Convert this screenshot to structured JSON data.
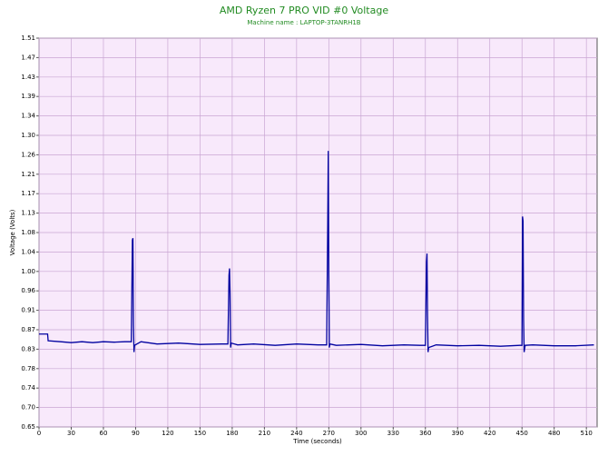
{
  "chart_data": {
    "type": "line",
    "title": "AMD Ryzen 7 PRO VID #0 Voltage",
    "subtitle": "Machine name : LAPTOP-3TANRH1B",
    "xlabel": "Time (seconds)",
    "ylabel": "Voltage (Volts)",
    "x": [
      0,
      8,
      8.5,
      20,
      30,
      40,
      50,
      60,
      70,
      80,
      86,
      87,
      87.5,
      88,
      88.5,
      89,
      95,
      110,
      130,
      150,
      170,
      176,
      177,
      177.5,
      178,
      178.5,
      179,
      185,
      200,
      220,
      240,
      260,
      268,
      269,
      269.5,
      270,
      270.5,
      271,
      277,
      300,
      320,
      340,
      355,
      360,
      361,
      361.5,
      362,
      362.5,
      363,
      370,
      390,
      410,
      430,
      448,
      450,
      450.5,
      451,
      451.5,
      452,
      452.5,
      453,
      460,
      480,
      500,
      517
    ],
    "values": [
      0.86,
      0.86,
      0.845,
      0.843,
      0.841,
      0.843,
      0.841,
      0.843,
      0.842,
      0.843,
      0.843,
      1.068,
      1.072,
      0.88,
      0.82,
      0.835,
      0.843,
      0.838,
      0.84,
      0.837,
      0.838,
      0.838,
      0.99,
      1.005,
      0.95,
      0.83,
      0.84,
      0.836,
      0.838,
      0.835,
      0.838,
      0.836,
      0.836,
      1.1,
      1.265,
      1.0,
      0.83,
      0.838,
      0.835,
      0.837,
      0.834,
      0.836,
      0.835,
      0.835,
      1.02,
      1.038,
      0.9,
      0.82,
      0.83,
      0.836,
      0.834,
      0.835,
      0.833,
      0.835,
      0.835,
      1.12,
      1.11,
      0.89,
      0.82,
      0.828,
      0.835,
      0.836,
      0.834,
      0.834,
      0.836
    ],
    "color": "#0000a0",
    "xlim": [
      0,
      520
    ],
    "xticks": [
      0,
      30,
      60,
      90,
      120,
      150,
      180,
      210,
      240,
      270,
      300,
      330,
      360,
      390,
      420,
      450,
      480,
      510
    ],
    "ylim": [
      0.6545,
      1.5145
    ],
    "yticks": [
      {
        "value": 0.6545,
        "label": "0.65"
      },
      {
        "value": 0.6975,
        "label": "0.70"
      },
      {
        "value": 0.7405,
        "label": "0.74"
      },
      {
        "value": 0.7835,
        "label": "0.78"
      },
      {
        "value": 0.8265,
        "label": "0.83"
      },
      {
        "value": 0.8695,
        "label": "0.87"
      },
      {
        "value": 0.9125,
        "label": "0.91"
      },
      {
        "value": 0.9555,
        "label": "0.96"
      },
      {
        "value": 0.9985,
        "label": "1.00"
      },
      {
        "value": 1.0415,
        "label": "1.04"
      },
      {
        "value": 1.0845,
        "label": "1.08"
      },
      {
        "value": 1.1275,
        "label": "1.13"
      },
      {
        "value": 1.1705,
        "label": "1.17"
      },
      {
        "value": 1.2135,
        "label": "1.21"
      },
      {
        "value": 1.2565,
        "label": "1.26"
      },
      {
        "value": 1.2995,
        "label": "1.30"
      },
      {
        "value": 1.3425,
        "label": "1.34"
      },
      {
        "value": 1.3855,
        "label": "1.39"
      },
      {
        "value": 1.4285,
        "label": "1.43"
      },
      {
        "value": 1.4715,
        "label": "1.47"
      },
      {
        "value": 1.5145,
        "label": "1.51"
      }
    ],
    "grid": true
  }
}
